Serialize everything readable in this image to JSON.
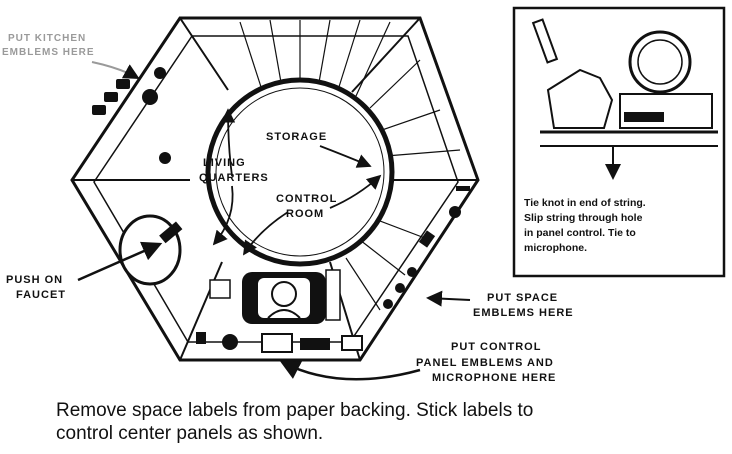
{
  "labels": {
    "kitchen": [
      "PUT KITCHEN",
      "EMBLEMS HERE"
    ],
    "storage": "STORAGE",
    "living": [
      "LIVING",
      "QUARTERS"
    ],
    "control_room": [
      "CONTROL",
      "ROOM"
    ],
    "faucet": [
      "PUSH ON",
      "FAUCET"
    ],
    "space": [
      "PUT SPACE",
      "EMBLEMS HERE"
    ],
    "control_panel": [
      "PUT CONTROL",
      "PANEL EMBLEMS AND",
      "MICROPHONE HERE"
    ]
  },
  "inset_note": [
    "Tie knot in end of string.",
    "Slip string through hole",
    "in panel control. Tie to",
    "microphone."
  ],
  "caption": [
    "Remove space labels from paper backing. Stick labels to",
    "control center panels as shown."
  ]
}
